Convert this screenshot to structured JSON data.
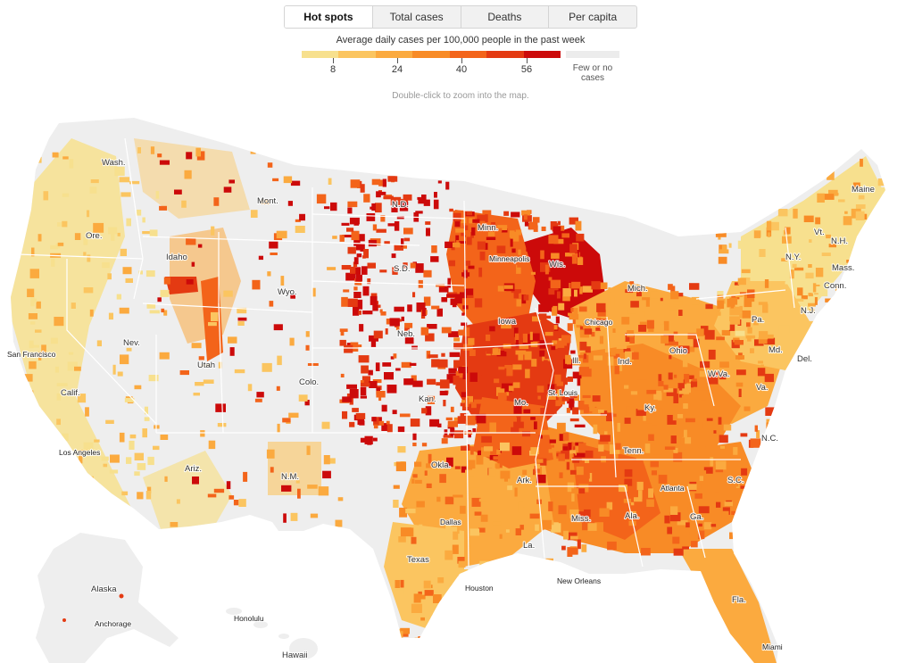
{
  "tabs": [
    {
      "label": "Hot spots",
      "active": true
    },
    {
      "label": "Total cases",
      "active": false
    },
    {
      "label": "Deaths",
      "active": false
    },
    {
      "label": "Per capita",
      "active": false
    }
  ],
  "legend": {
    "title": "Average daily cases per 100,000 people in the past week",
    "colors": [
      "#f7e08e",
      "#fbc560",
      "#fbaa3f",
      "#f88b26",
      "#f3641a",
      "#e43a12",
      "#cc0a0a"
    ],
    "ticks": [
      "8",
      "24",
      "40",
      "56"
    ],
    "none_color": "#ececec",
    "none_label_line1": "Few or no",
    "none_label_line2": "cases"
  },
  "zoom_hint": "Double-click to zoom into the map.",
  "map": {
    "background_fill": "#eeeeee",
    "labels": {
      "wash": "Wash.",
      "ore": "Ore.",
      "idaho": "Idaho",
      "mont": "Mont.",
      "wyo": "Wyo.",
      "nev": "Nev.",
      "san_francisco": "San Francisco",
      "calif": "Calif.",
      "los_angeles": "Los Angeles",
      "utah": "Utah",
      "ariz": "Ariz.",
      "colo": "Colo.",
      "nm": "N.M.",
      "nd": "N.D.",
      "sd": "S.D.",
      "neb": "Neb.",
      "kan": "Kan.",
      "okla": "Okla.",
      "texas": "Texas",
      "dallas": "Dallas",
      "houston": "Houston",
      "minn": "Minn.",
      "minneapolis": "Minneapolis",
      "iowa": "Iowa",
      "mo": "Mo.",
      "st_louis": "St. Louis",
      "ark": "Ark.",
      "la": "La.",
      "new_orleans": "New Orleans",
      "wis": "Wis.",
      "chicago": "Chicago",
      "ill": "Ill.",
      "mich": "Mich.",
      "ind": "Ind.",
      "ohio": "Ohio",
      "ky": "Ky.",
      "tenn": "Tenn.",
      "miss": "Miss.",
      "ala": "Ala.",
      "atlanta": "Atlanta",
      "ga": "Ga.",
      "fla": "Fla.",
      "miami": "Miami",
      "sc": "S.C.",
      "nc": "N.C.",
      "va": "Va.",
      "wva": "W.Va.",
      "md": "Md.",
      "del": "Del.",
      "pa": "Pa.",
      "nj": "N.J.",
      "ny": "N.Y.",
      "conn": "Conn.",
      "mass": "Mass.",
      "vt": "Vt.",
      "nh": "N.H.",
      "maine": "Maine",
      "alaska": "Alaska",
      "anchorage": "Anchorage",
      "honolulu": "Honolulu",
      "hawaii": "Hawaii"
    }
  }
}
